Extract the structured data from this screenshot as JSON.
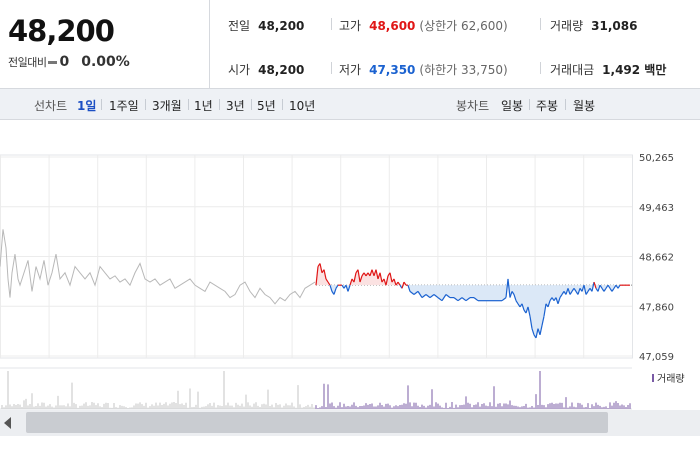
{
  "quote": {
    "price": "48,200",
    "change_label": "전일대비",
    "change_value": "0",
    "change_pct": "0.00%",
    "prev_close_label": "전일",
    "prev_close": "48,200",
    "open_label": "시가",
    "open": "48,200",
    "high_label": "고가",
    "high": "48,600",
    "upper_limit": "(상한가 62,600)",
    "low_label": "저가",
    "low": "47,350",
    "lower_limit": "(하한가 33,750)",
    "volume_label": "거래량",
    "volume": "31,086",
    "amount_label": "거래대금",
    "amount": "1,492 백만"
  },
  "toolbar": {
    "line_label": "선차트",
    "ranges": [
      "1일",
      "1주일",
      "3개월",
      "1년",
      "3년",
      "5년",
      "10년"
    ],
    "active_range": "1일",
    "candle_label": "봉차트",
    "candles": [
      "일봉",
      "주봉",
      "월봉"
    ]
  },
  "colors": {
    "up": "#e01616",
    "down": "#1b62d0",
    "past": "#b8b8b8",
    "volume": "#7a5ba6"
  },
  "icons": {
    "scroll_left": "triangle-left-icon"
  },
  "chart_data": {
    "type": "line",
    "reference_price": 48200,
    "ylim": [
      47059,
      50265
    ],
    "y_ticks": [
      "50,265",
      "49,463",
      "48,662",
      "47,860",
      "47,059"
    ],
    "legend": "거래량",
    "series": [
      {
        "x": [
          0,
          3,
          6,
          8,
          10,
          12,
          15,
          18,
          20,
          24,
          28,
          32,
          36,
          40,
          44,
          48,
          52,
          56,
          60,
          65,
          70,
          75,
          80,
          85,
          90,
          95,
          100,
          105,
          110,
          115,
          120,
          125,
          130,
          135,
          140,
          145,
          150,
          155,
          160,
          165,
          170,
          175,
          180,
          185,
          190,
          195,
          200,
          205,
          210,
          215,
          220,
          225,
          230,
          235,
          240,
          245,
          250,
          255,
          260,
          265,
          270,
          275,
          280,
          285,
          290,
          295,
          300,
          305,
          310,
          315
        ],
        "values": [
          48500,
          49100,
          48800,
          48300,
          48000,
          48400,
          48700,
          48300,
          48200,
          48400,
          48600,
          48100,
          48500,
          48300,
          48600,
          48200,
          48400,
          48700,
          48300,
          48400,
          48200,
          48500,
          48400,
          48300,
          48400,
          48200,
          48500,
          48400,
          48300,
          48350,
          48250,
          48300,
          48200,
          48400,
          48550,
          48300,
          48250,
          48300,
          48200,
          48250,
          48300,
          48150,
          48200,
          48250,
          48300,
          48200,
          48150,
          48100,
          48250,
          48200,
          48150,
          48100,
          48000,
          48050,
          48200,
          48250,
          48100,
          48000,
          48150,
          48050,
          48000,
          47900,
          48000,
          47950,
          48050,
          48100,
          48000,
          48150,
          48200,
          48250
        ]
      },
      {
        "x": [
          316,
          318,
          320,
          322,
          324,
          326,
          328,
          330,
          332,
          334,
          336,
          338,
          340,
          342,
          344,
          346,
          348,
          350,
          352,
          354,
          356,
          358,
          360,
          362,
          364,
          366,
          368,
          370,
          372,
          374,
          376,
          378,
          380,
          382,
          384,
          386,
          388,
          390,
          392,
          394,
          396,
          398,
          400,
          402,
          404,
          406,
          408,
          410,
          414,
          418,
          422,
          426,
          430,
          434,
          438,
          442,
          446,
          450,
          454,
          458,
          462,
          466,
          470,
          474,
          478,
          482,
          486,
          490,
          494,
          498,
          502,
          506,
          508,
          510,
          512,
          514,
          516,
          518,
          520,
          522,
          524,
          526,
          528,
          530,
          532,
          534,
          536,
          538,
          540,
          542,
          544,
          546,
          548,
          550,
          552,
          554,
          556,
          558,
          560,
          562,
          564,
          566,
          568,
          570,
          572,
          574,
          576,
          578,
          580,
          582,
          584,
          586,
          588,
          590,
          592,
          594,
          596,
          598,
          600,
          602,
          604,
          606,
          608,
          610,
          612,
          614,
          616,
          618,
          620,
          622,
          624,
          626,
          628,
          630
        ],
        "values": [
          48200,
          48500,
          48550,
          48400,
          48450,
          48300,
          48250,
          48200,
          48100,
          48050,
          48150,
          48200,
          48200,
          48200,
          48150,
          48200,
          48100,
          48200,
          48300,
          48250,
          48400,
          48450,
          48250,
          48350,
          48400,
          48350,
          48400,
          48350,
          48450,
          48350,
          48450,
          48300,
          48400,
          48250,
          48300,
          48200,
          48350,
          48400,
          48250,
          48300,
          48200,
          48250,
          48200,
          48150,
          48250,
          48200,
          48200,
          48100,
          48050,
          48100,
          48000,
          48050,
          48000,
          48050,
          48000,
          47950,
          48050,
          48000,
          48000,
          47950,
          48000,
          47950,
          48000,
          48000,
          47950,
          47950,
          47950,
          47950,
          47950,
          47950,
          47950,
          48000,
          48300,
          48000,
          48100,
          48050,
          47950,
          47900,
          47850,
          47900,
          47800,
          47750,
          47850,
          47700,
          47500,
          47400,
          47350,
          47500,
          47400,
          47550,
          47700,
          47900,
          47850,
          47950,
          48000,
          47950,
          48000,
          47900,
          48000,
          48050,
          48100,
          48050,
          48150,
          48050,
          48100,
          48150,
          48100,
          48050,
          48150,
          48100,
          48200,
          48050,
          48100,
          48150,
          48100,
          48250,
          48150,
          48100,
          48200,
          48150,
          48100,
          48150,
          48200,
          48150,
          48100,
          48150,
          48200,
          48150,
          48200,
          48200,
          48200,
          48200,
          48200,
          48200
        ]
      }
    ]
  }
}
